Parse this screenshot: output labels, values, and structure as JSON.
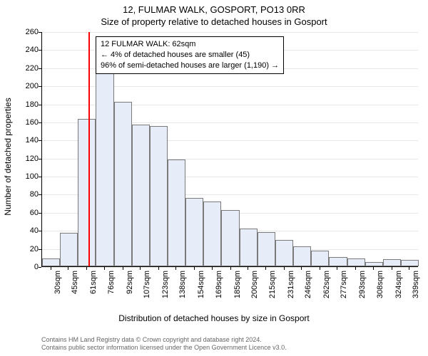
{
  "title_line1": "12, FULMAR WALK, GOSPORT, PO13 0RR",
  "title_line2": "Size of property relative to detached houses in Gosport",
  "y_axis_label": "Number of detached properties",
  "x_axis_label": "Distribution of detached houses by size in Gosport",
  "footer_line1": "Contains HM Land Registry data © Crown copyright and database right 2024.",
  "footer_line2": "Contains public sector information licensed under the Open Government Licence v3.0.",
  "chart": {
    "type": "histogram",
    "background_color": "#ffffff",
    "grid_color": "#e6e6e6",
    "bar_fill": "#e6edf8",
    "bar_border": "#7a7a7a",
    "marker_color": "#ff0000",
    "marker_x": 62,
    "ylim": [
      0,
      260
    ],
    "ytick_step": 20,
    "xlim": [
      22,
      347
    ],
    "x_ticks": [
      30,
      45,
      61,
      76,
      92,
      107,
      123,
      138,
      154,
      169,
      185,
      200,
      215,
      231,
      246,
      262,
      277,
      293,
      308,
      324,
      339
    ],
    "x_tick_suffix": "sqm",
    "bar_width_units": 15.48,
    "bins_start": 22,
    "values": [
      9,
      37,
      163,
      218,
      182,
      157,
      155,
      118,
      76,
      72,
      62,
      42,
      38,
      29,
      22,
      17,
      10,
      9,
      5,
      8,
      7
    ],
    "title_fontsize": 13,
    "label_fontsize": 12,
    "tick_fontsize": 11
  },
  "annotation": {
    "line1": "12 FULMAR WALK: 62sqm",
    "line2": "← 4% of detached houses are smaller (45)",
    "line3": "96% of semi-detached houses are larger (1,190) →",
    "fontsize": 11,
    "border_color": "#000000",
    "background": "#ffffff"
  }
}
